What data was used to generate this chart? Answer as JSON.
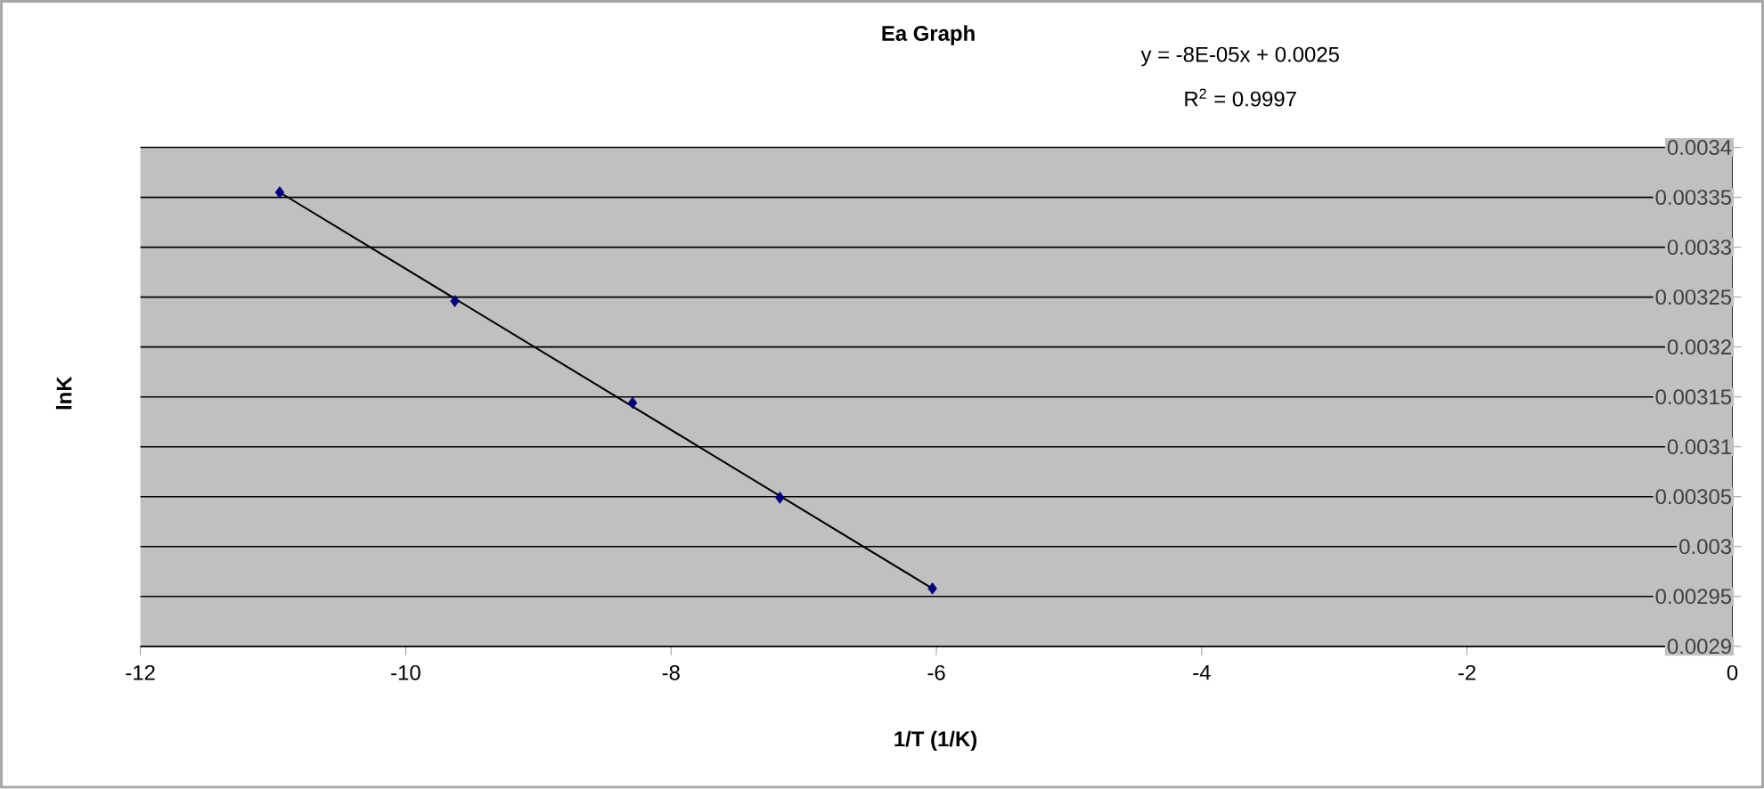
{
  "chart_data": {
    "type": "scatter",
    "title": "Ea Graph",
    "xlabel": "1/T (1/K)",
    "ylabel": "lnK",
    "annotations": [
      "y = -8E-05x + 0.0025",
      "R$^{2}$ = 0.9997"
    ],
    "xlim": [
      -12,
      0
    ],
    "xticks": [
      -12,
      -10,
      -8,
      -6,
      -4,
      -2,
      0
    ],
    "ylim": [
      0.0029,
      0.0034
    ],
    "yticks": [
      0.0029,
      0.00295,
      0.003,
      0.00305,
      0.0031,
      0.00315,
      0.0032,
      0.00325,
      0.0033,
      0.00335,
      0.0034
    ],
    "grid": "y",
    "marker": "diamond",
    "series": [
      {
        "color": "#000080",
        "x": [
          -10.95,
          -9.63,
          -8.29,
          -7.18,
          -6.03
        ],
        "values": [
          0.003355,
          0.003246,
          0.003144,
          0.003049,
          0.002958
        ]
      },
      {
        "type": "line",
        "marker": "none",
        "color": "#000000",
        "x": [
          -10.95,
          -6.03
        ],
        "values": [
          0.003355,
          0.002958
        ]
      }
    ]
  }
}
